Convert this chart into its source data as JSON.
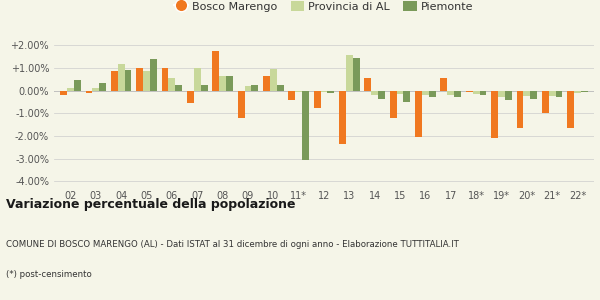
{
  "years": [
    "02",
    "03",
    "04",
    "05",
    "06",
    "07",
    "08",
    "09",
    "10",
    "11*",
    "12",
    "13",
    "14",
    "15",
    "16",
    "17",
    "18*",
    "19*",
    "20*",
    "21*",
    "22*"
  ],
  "bosco": [
    -0.2,
    -0.1,
    0.85,
    1.0,
    1.0,
    -0.55,
    1.75,
    -1.2,
    0.65,
    -0.4,
    -0.75,
    -2.35,
    0.55,
    -1.2,
    -2.05,
    0.55,
    -0.05,
    -2.1,
    -1.65,
    -1.0,
    -1.65
  ],
  "provincia": [
    0.1,
    0.1,
    1.15,
    0.85,
    0.55,
    1.0,
    0.65,
    0.2,
    0.95,
    -0.05,
    -0.05,
    1.55,
    -0.2,
    -0.15,
    -0.2,
    -0.2,
    -0.15,
    -0.3,
    -0.25,
    -0.25,
    -0.1
  ],
  "piemonte": [
    0.45,
    0.35,
    0.9,
    1.4,
    0.25,
    0.25,
    0.65,
    0.25,
    0.25,
    -3.05,
    -0.1,
    1.45,
    -0.35,
    -0.5,
    -0.3,
    -0.3,
    -0.2,
    -0.4,
    -0.35,
    -0.3,
    -0.05
  ],
  "bosco_color": "#f07820",
  "provincia_color": "#c8d89a",
  "piemonte_color": "#7a9a5a",
  "bg_color": "#f5f5e8",
  "title_bold": "Variazione percentuale della popolazione",
  "subtitle": "COMUNE DI BOSCO MARENGO (AL) - Dati ISTAT al 31 dicembre di ogni anno - Elaborazione TUTTITALIA.IT",
  "footnote": "(*) post-censimento",
  "ylim": [
    -4.2,
    2.4
  ],
  "yticks": [
    -4.0,
    -3.0,
    -2.0,
    -1.0,
    0.0,
    1.0,
    2.0
  ]
}
